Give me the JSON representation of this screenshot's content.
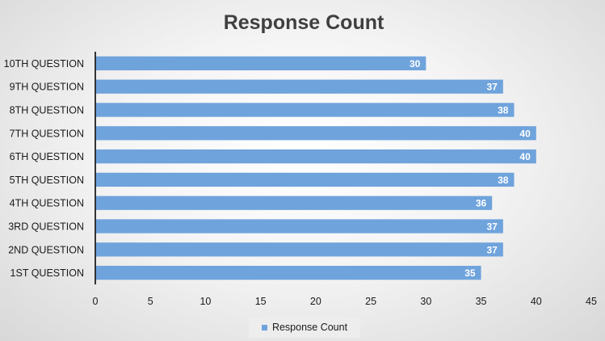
{
  "chart_data": {
    "type": "bar",
    "orientation": "horizontal",
    "title": "Response Count",
    "categories": [
      "1ST QUESTION",
      "2ND QUESTION",
      "3RD QUESTION",
      "4TH QUESTION",
      "5TH QUESTION",
      "6TH QUESTION",
      "7TH QUESTION",
      "8TH QUESTION",
      "9TH QUESTION",
      "10TH QUESTION"
    ],
    "series": [
      {
        "name": "Response Count",
        "values": [
          35,
          37,
          37,
          36,
          38,
          40,
          40,
          38,
          37,
          30
        ],
        "color": "#6fa3dc"
      }
    ],
    "xlim": [
      0,
      45
    ],
    "xticks": [
      0,
      5,
      10,
      15,
      20,
      25,
      30,
      35,
      40,
      45
    ],
    "grid": false,
    "legend_position": "bottom",
    "data_labels": true
  }
}
